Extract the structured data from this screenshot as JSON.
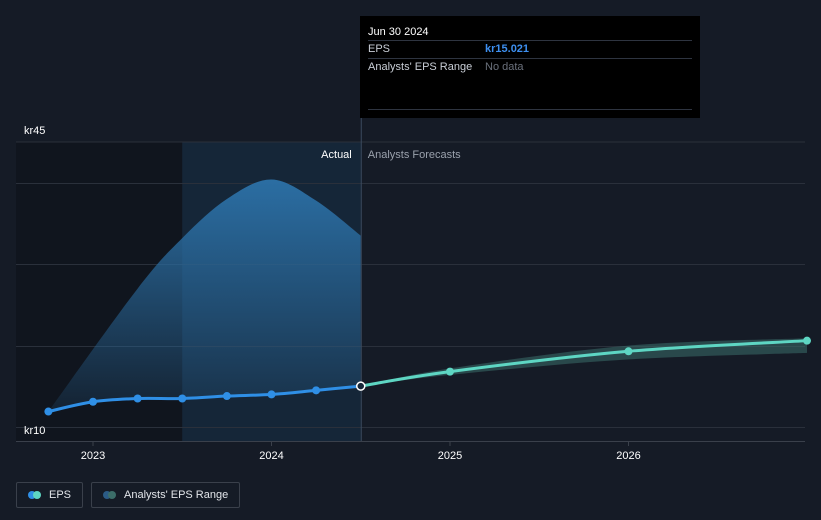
{
  "chart_data": {
    "type": "line",
    "y_axis": {
      "min": 10,
      "max": 45,
      "max_label": "kr45",
      "min_label": "kr10"
    },
    "x_ticks": [
      {
        "label": "2023",
        "t": 2023.0
      },
      {
        "label": "2024",
        "t": 2024.0
      },
      {
        "label": "2025",
        "t": 2025.0
      },
      {
        "label": "2026",
        "t": 2026.0
      }
    ],
    "regions": {
      "actual_label": "Actual",
      "forecast_label": "Analysts Forecasts",
      "divider_t": 2024.5,
      "highlight_start_t": 2023.5
    },
    "series": [
      {
        "name": "EPS",
        "color": "#2f8fe6",
        "points": [
          {
            "t": 2022.75,
            "y": 11.9
          },
          {
            "t": 2023.0,
            "y": 13.1
          },
          {
            "t": 2023.25,
            "y": 13.5
          },
          {
            "t": 2023.5,
            "y": 13.5
          },
          {
            "t": 2023.75,
            "y": 13.8
          },
          {
            "t": 2024.0,
            "y": 14.0
          },
          {
            "t": 2024.25,
            "y": 14.5
          },
          {
            "t": 2024.5,
            "y": 15.021
          }
        ]
      },
      {
        "name": "EPS forecast",
        "color": "#5ed6c3",
        "points": [
          {
            "t": 2024.5,
            "y": 15.021
          },
          {
            "t": 2025.0,
            "y": 16.8
          },
          {
            "t": 2026.0,
            "y": 19.3
          },
          {
            "t": 2027.0,
            "y": 20.6
          }
        ]
      }
    ],
    "actual_band": {
      "color": "#2b6ea3",
      "lower": [
        {
          "t": 2022.75,
          "y": 11.9
        },
        {
          "t": 2023.0,
          "y": 13.1
        },
        {
          "t": 2023.25,
          "y": 13.5
        },
        {
          "t": 2023.5,
          "y": 13.5
        },
        {
          "t": 2023.75,
          "y": 13.8
        },
        {
          "t": 2024.0,
          "y": 14.0
        },
        {
          "t": 2024.25,
          "y": 14.5
        },
        {
          "t": 2024.5,
          "y": 15.021
        }
      ],
      "upper": [
        {
          "t": 2022.75,
          "y": 11.9
        },
        {
          "t": 2023.25,
          "y": 27.0
        },
        {
          "t": 2023.5,
          "y": 33.2
        },
        {
          "t": 2023.75,
          "y": 38.0
        },
        {
          "t": 2024.0,
          "y": 40.4
        },
        {
          "t": 2024.25,
          "y": 37.8
        },
        {
          "t": 2024.5,
          "y": 33.5
        }
      ]
    },
    "forecast_band": {
      "color": "#3b6d69",
      "upper": [
        {
          "t": 2024.5,
          "y": 15.021
        },
        {
          "t": 2025.0,
          "y": 17.2
        },
        {
          "t": 2026.0,
          "y": 20.0
        },
        {
          "t": 2027.0,
          "y": 20.9
        }
      ],
      "lower": [
        {
          "t": 2024.5,
          "y": 15.021
        },
        {
          "t": 2025.0,
          "y": 16.4
        },
        {
          "t": 2026.0,
          "y": 18.3
        },
        {
          "t": 2027.0,
          "y": 19.1
        }
      ]
    },
    "gridlines_y": [
      10,
      20,
      30,
      40,
      45
    ],
    "legend_position": "bottom-left"
  },
  "tooltip": {
    "date": "Jun 30 2024",
    "rows": [
      {
        "label": "EPS",
        "value": "kr15.021"
      },
      {
        "label": "Analysts' EPS Range",
        "value": "No data"
      }
    ]
  },
  "legend": [
    {
      "label": "EPS",
      "colors": [
        "#2f8fe6",
        "#5ed6c3"
      ]
    },
    {
      "label": "Analysts' EPS Range",
      "colors": [
        "#2b5b86",
        "#3b6d69"
      ]
    }
  ]
}
